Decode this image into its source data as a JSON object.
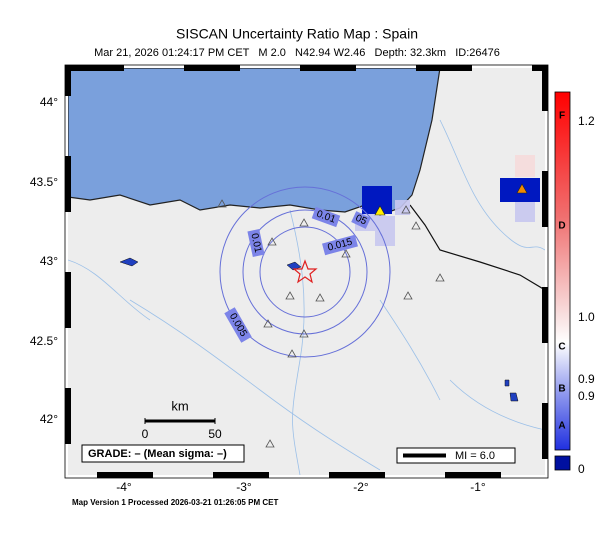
{
  "header": {
    "title": "SISCAN Uncertainty Ratio Map : Spain",
    "subtitle": "Mar 21, 2026 01:24:17 PM CET   M 2.0   N42.94 W2.46   Depth: 32.3km   ID:26476"
  },
  "map": {
    "lon_labels": [
      "-4°",
      "-3°",
      "-2°",
      "-1°"
    ],
    "lat_labels": [
      "44°",
      "43.5°",
      "43°",
      "42.5°",
      "42°"
    ],
    "contour_labels": [
      "0.01",
      "0.015",
      "0.005",
      "0.01",
      "05"
    ]
  },
  "scale": {
    "unit": "km",
    "labels": [
      "0",
      "50"
    ]
  },
  "grade": "GRADE: – (Mean sigma: –)",
  "legend": "MI = 6.0",
  "colorbar": {
    "letters": [
      "F",
      "D",
      "C",
      "B",
      "A"
    ],
    "values": [
      "1.2",
      "1.0",
      "0.9",
      "0.9",
      "0"
    ]
  },
  "footer": "Map Version 1 Processed 2026-03-21 01:26:05 PM CET"
}
